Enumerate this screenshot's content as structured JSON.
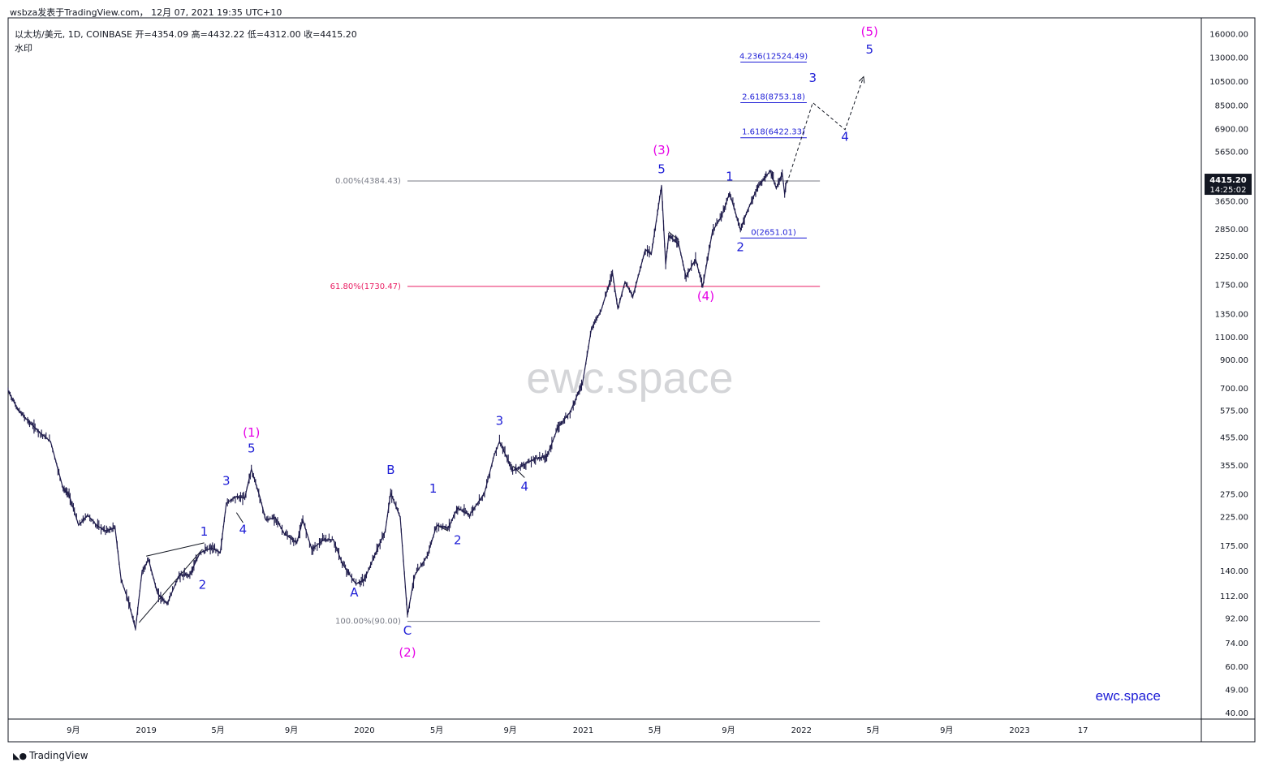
{
  "header": {
    "caption": "wsbza发表于TradingView.com， 12月 07, 2021 19:35 UTC+10",
    "symbol_line": "以太坊/美元, 1D, COINBASE  开=4354.09  高=4432.22  低=4312.00  收=4415.20",
    "watermark_flag": "水印"
  },
  "footer": {
    "brand": "TradingView",
    "logo_icon": "tradingview-logo-icon"
  },
  "colors": {
    "candle": "#1e1b4b",
    "wave_blue": "#1d1dd6",
    "wave_magenta": "#e600e6",
    "fib_grey": "#787b86",
    "fib_pink": "#e91e63"
  },
  "chart_data": {
    "type": "line",
    "scale": "log",
    "ylim": [
      38,
      18500
    ],
    "xlim": [
      "2018-05-15",
      "2023-11-01"
    ],
    "y_ticks": [
      {
        "v": 16000,
        "label": "16000.00"
      },
      {
        "v": 13000,
        "label": "13000.00"
      },
      {
        "v": 10500,
        "label": "10500.00"
      },
      {
        "v": 8500,
        "label": "8500.00"
      },
      {
        "v": 6900,
        "label": "6900.00"
      },
      {
        "v": 5650,
        "label": "5650.00"
      },
      {
        "v": 3650,
        "label": "3650.00"
      },
      {
        "v": 2850,
        "label": "2850.00"
      },
      {
        "v": 2250,
        "label": "2250.00"
      },
      {
        "v": 1750,
        "label": "1750.00"
      },
      {
        "v": 1350,
        "label": "1350.00"
      },
      {
        "v": 1100,
        "label": "1100.00"
      },
      {
        "v": 900,
        "label": "900.00"
      },
      {
        "v": 700,
        "label": "700.00"
      },
      {
        "v": 575,
        "label": "575.00"
      },
      {
        "v": 455,
        "label": "455.00"
      },
      {
        "v": 355,
        "label": "355.00"
      },
      {
        "v": 275,
        "label": "275.00"
      },
      {
        "v": 225,
        "label": "225.00"
      },
      {
        "v": 175,
        "label": "175.00"
      },
      {
        "v": 140,
        "label": "140.00"
      },
      {
        "v": 112,
        "label": "112.00"
      },
      {
        "v": 92,
        "label": "92.00"
      },
      {
        "v": 74,
        "label": "74.00"
      },
      {
        "v": 60,
        "label": "60.00"
      },
      {
        "v": 49,
        "label": "49.00"
      },
      {
        "v": 40,
        "label": "40.00"
      }
    ],
    "x_ticks": [
      {
        "d": "2018-09-01",
        "label": "9月"
      },
      {
        "d": "2019-01-01",
        "label": "2019"
      },
      {
        "d": "2019-05-01",
        "label": "5月"
      },
      {
        "d": "2019-09-01",
        "label": "9月"
      },
      {
        "d": "2020-01-01",
        "label": "2020"
      },
      {
        "d": "2020-05-01",
        "label": "5月"
      },
      {
        "d": "2020-09-01",
        "label": "9月"
      },
      {
        "d": "2021-01-01",
        "label": "2021"
      },
      {
        "d": "2021-05-01",
        "label": "5月"
      },
      {
        "d": "2021-09-01",
        "label": "9月"
      },
      {
        "d": "2022-01-01",
        "label": "2022"
      },
      {
        "d": "2022-05-01",
        "label": "5月"
      },
      {
        "d": "2022-09-01",
        "label": "9月"
      },
      {
        "d": "2023-01-01",
        "label": "2023"
      },
      {
        "d": "2023-04-17",
        "label": "17"
      }
    ],
    "series": [
      {
        "values": [
          [
            "2018-05-15",
            690
          ],
          [
            "2018-06-01",
            580
          ],
          [
            "2018-06-20",
            520
          ],
          [
            "2018-07-10",
            470
          ],
          [
            "2018-07-25",
            440
          ],
          [
            "2018-08-15",
            290
          ],
          [
            "2018-08-25",
            275
          ],
          [
            "2018-09-10",
            210
          ],
          [
            "2018-09-25",
            230
          ],
          [
            "2018-10-10",
            210
          ],
          [
            "2018-10-25",
            200
          ],
          [
            "2018-11-10",
            205
          ],
          [
            "2018-11-20",
            130
          ],
          [
            "2018-12-01",
            110
          ],
          [
            "2018-12-14",
            84
          ],
          [
            "2018-12-25",
            140
          ],
          [
            "2019-01-05",
            155
          ],
          [
            "2019-01-20",
            115
          ],
          [
            "2019-02-05",
            105
          ],
          [
            "2019-02-25",
            135
          ],
          [
            "2019-03-15",
            136
          ],
          [
            "2019-04-01",
            165
          ],
          [
            "2019-04-20",
            172
          ],
          [
            "2019-05-05",
            165
          ],
          [
            "2019-05-15",
            255
          ],
          [
            "2019-05-30",
            270
          ],
          [
            "2019-06-15",
            268
          ],
          [
            "2019-06-26",
            345
          ],
          [
            "2019-07-10",
            270
          ],
          [
            "2019-07-20",
            220
          ],
          [
            "2019-08-05",
            225
          ],
          [
            "2019-08-20",
            195
          ],
          [
            "2019-09-10",
            180
          ],
          [
            "2019-09-20",
            220
          ],
          [
            "2019-10-05",
            170
          ],
          [
            "2019-10-25",
            185
          ],
          [
            "2019-11-10",
            185
          ],
          [
            "2019-11-25",
            150
          ],
          [
            "2019-12-18",
            125
          ],
          [
            "2020-01-01",
            130
          ],
          [
            "2020-01-20",
            165
          ],
          [
            "2020-02-05",
            200
          ],
          [
            "2020-02-14",
            280
          ],
          [
            "2020-03-01",
            225
          ],
          [
            "2020-03-13",
            95
          ],
          [
            "2020-03-25",
            135
          ],
          [
            "2020-04-15",
            160
          ],
          [
            "2020-05-01",
            210
          ],
          [
            "2020-05-20",
            205
          ],
          [
            "2020-06-05",
            245
          ],
          [
            "2020-06-25",
            230
          ],
          [
            "2020-07-20",
            280
          ],
          [
            "2020-08-05",
            390
          ],
          [
            "2020-08-14",
            440
          ],
          [
            "2020-09-05",
            340
          ],
          [
            "2020-09-20",
            355
          ],
          [
            "2020-10-15",
            380
          ],
          [
            "2020-11-01",
            385
          ],
          [
            "2020-11-20",
            500
          ],
          [
            "2020-12-10",
            570
          ],
          [
            "2020-12-31",
            740
          ],
          [
            "2021-01-15",
            1200
          ],
          [
            "2021-01-31",
            1400
          ],
          [
            "2021-02-19",
            1950
          ],
          [
            "2021-02-28",
            1420
          ],
          [
            "2021-03-12",
            1800
          ],
          [
            "2021-03-25",
            1580
          ],
          [
            "2021-04-15",
            2400
          ],
          [
            "2021-04-25",
            2300
          ],
          [
            "2021-05-12",
            4200
          ],
          [
            "2021-05-19",
            2100
          ],
          [
            "2021-05-24",
            2700
          ],
          [
            "2021-06-10",
            2500
          ],
          [
            "2021-06-22",
            1880
          ],
          [
            "2021-07-08",
            2200
          ],
          [
            "2021-07-20",
            1730
          ],
          [
            "2021-08-05",
            2800
          ],
          [
            "2021-08-20",
            3200
          ],
          [
            "2021-09-03",
            3950
          ],
          [
            "2021-09-21",
            2850
          ],
          [
            "2021-10-01",
            3300
          ],
          [
            "2021-10-20",
            4150
          ],
          [
            "2021-11-10",
            4800
          ],
          [
            "2021-11-20",
            4100
          ],
          [
            "2021-11-30",
            4700
          ],
          [
            "2021-12-04",
            3900
          ],
          [
            "2021-12-07",
            4415
          ]
        ]
      }
    ],
    "fib_levels": [
      {
        "label": "0.00%(4384.43)",
        "value": 4384.43,
        "from": "2020-03-13",
        "to": "2022-02-01",
        "color": "#787b86"
      },
      {
        "label": "61.80%(1730.47)",
        "value": 1730.47,
        "from": "2020-03-13",
        "to": "2022-02-01",
        "color": "#e91e63"
      },
      {
        "label": "100.00%(90.00)",
        "value": 90,
        "from": "2020-03-13",
        "to": "2022-02-01",
        "color": "#787b86"
      },
      {
        "label": "0(2651.01)",
        "value": 2651.01,
        "from": "2021-09-21",
        "to": "2022-01-10",
        "color": "#1d1dd6"
      },
      {
        "label": "1.618(6422.33)",
        "value": 6422.33,
        "from": "2021-09-21",
        "to": "2022-01-10",
        "color": "#1d1dd6"
      },
      {
        "label": "2.618(8753.18)",
        "value": 8753.18,
        "from": "2021-09-21",
        "to": "2022-01-10",
        "color": "#1d1dd6"
      },
      {
        "label": "4.236(12524.49)",
        "value": 12524.49,
        "from": "2021-09-21",
        "to": "2022-01-10",
        "color": "#1d1dd6"
      }
    ],
    "projection": [
      [
        "2021-12-08",
        4300
      ],
      [
        "2022-01-20",
        8753
      ],
      [
        "2022-03-15",
        6900
      ],
      [
        "2022-04-15",
        11000
      ]
    ],
    "wave_labels": [
      {
        "t": "1",
        "d": "2019-04-08",
        "v": 192,
        "c": "blue"
      },
      {
        "t": "2",
        "d": "2019-04-05",
        "v": 120,
        "c": "blue"
      },
      {
        "t": "3",
        "d": "2019-05-15",
        "v": 300,
        "c": "blue"
      },
      {
        "t": "4",
        "d": "2019-06-12",
        "v": 195,
        "c": "blue"
      },
      {
        "t": "5",
        "d": "2019-06-26",
        "v": 400,
        "c": "blue"
      },
      {
        "t": "(1)",
        "d": "2019-06-26",
        "v": 460,
        "c": "magenta"
      },
      {
        "t": "A",
        "d": "2019-12-15",
        "v": 112,
        "c": "blue"
      },
      {
        "t": "B",
        "d": "2020-02-14",
        "v": 330,
        "c": "blue"
      },
      {
        "t": "C",
        "d": "2020-03-13",
        "v": 80,
        "c": "blue"
      },
      {
        "t": "(2)",
        "d": "2020-03-13",
        "v": 66,
        "c": "magenta"
      },
      {
        "t": "1",
        "d": "2020-04-25",
        "v": 280,
        "c": "blue"
      },
      {
        "t": "2",
        "d": "2020-06-05",
        "v": 178,
        "c": "blue"
      },
      {
        "t": "3",
        "d": "2020-08-14",
        "v": 510,
        "c": "blue"
      },
      {
        "t": "4",
        "d": "2020-09-25",
        "v": 285,
        "c": "blue"
      },
      {
        "t": "5",
        "d": "2021-05-12",
        "v": 4700,
        "c": "blue"
      },
      {
        "t": "(3)",
        "d": "2021-05-12",
        "v": 5550,
        "c": "magenta"
      },
      {
        "t": "(4)",
        "d": "2021-07-25",
        "v": 1530,
        "c": "magenta"
      },
      {
        "t": "1",
        "d": "2021-09-03",
        "v": 4400,
        "c": "blue"
      },
      {
        "t": "2",
        "d": "2021-09-21",
        "v": 2360,
        "c": "blue"
      },
      {
        "t": "3",
        "d": "2022-01-20",
        "v": 10500,
        "c": "blue"
      },
      {
        "t": "4",
        "d": "2022-03-15",
        "v": 6250,
        "c": "blue"
      },
      {
        "t": "5",
        "d": "2022-04-25",
        "v": 13500,
        "c": "blue"
      },
      {
        "t": "(5)",
        "d": "2022-04-25",
        "v": 15800,
        "c": "magenta"
      }
    ],
    "triangles": [
      [
        [
          "2019-01-01",
          160
        ],
        [
          "2019-04-08",
          180
        ],
        [
          "2018-12-20",
          89
        ],
        [
          "2019-04-05",
          170
        ]
      ],
      [
        [
          "2019-06-01",
          235
        ],
        [
          "2019-06-12",
          215
        ]
      ],
      [
        [
          "2020-05-01",
          210
        ],
        [
          "2020-05-20",
          200
        ],
        [
          "2020-05-01",
          172
        ]
      ],
      [
        [
          "2020-09-05",
          355
        ],
        [
          "2020-09-25",
          320
        ],
        [
          "2020-09-01",
          310
        ]
      ],
      [
        [
          "2021-05-24",
          2800
        ],
        [
          "2021-06-10",
          2600
        ],
        [
          "2021-05-24",
          2300
        ]
      ]
    ],
    "watermark": "ewc.space",
    "corner_brand": "ewc.space",
    "last_price": {
      "value": 4415.2,
      "label": "4415.20",
      "countdown": "14:25:02"
    }
  }
}
